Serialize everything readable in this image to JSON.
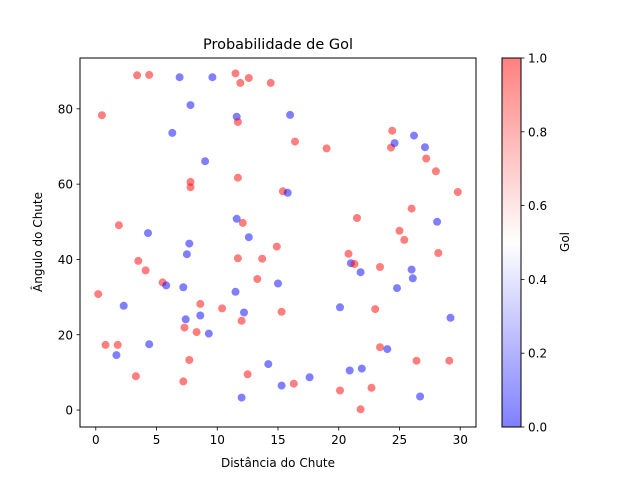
{
  "chart_data": {
    "type": "scatter",
    "title": "Probabilidade de Gol",
    "xlabel": "Distância do Chute",
    "ylabel": "Ângulo do Chute",
    "xlim": [
      -1.3,
      31.3
    ],
    "ylim": [
      -4.5,
      93.5
    ],
    "xticks": [
      0,
      5,
      10,
      15,
      20,
      25,
      30
    ],
    "yticks": [
      0,
      20,
      40,
      60,
      80
    ],
    "grid": false,
    "colorbar": {
      "label": "Gol",
      "range": [
        0.0,
        1.0
      ],
      "ticks": [
        "0.0",
        "0.2",
        "0.4",
        "0.6",
        "0.8",
        "1.0"
      ],
      "colormap": "bwr",
      "alpha": 0.5
    },
    "colors": {
      "goal": "#ff0000",
      "no_goal": "#0000ff"
    },
    "points": [
      {
        "x": 3.4,
        "y": 88.9,
        "gol": 1
      },
      {
        "x": 4.4,
        "y": 89.0,
        "gol": 1
      },
      {
        "x": 6.9,
        "y": 88.4,
        "gol": 0
      },
      {
        "x": 9.6,
        "y": 88.4,
        "gol": 0
      },
      {
        "x": 11.5,
        "y": 89.4,
        "gol": 1
      },
      {
        "x": 12.6,
        "y": 88.2,
        "gol": 1
      },
      {
        "x": 11.9,
        "y": 86.9,
        "gol": 1
      },
      {
        "x": 14.4,
        "y": 86.9,
        "gol": 1
      },
      {
        "x": 0.5,
        "y": 78.3,
        "gol": 1
      },
      {
        "x": 7.8,
        "y": 81.0,
        "gol": 0
      },
      {
        "x": 11.6,
        "y": 77.9,
        "gol": 0
      },
      {
        "x": 11.7,
        "y": 76.5,
        "gol": 1
      },
      {
        "x": 16.0,
        "y": 78.4,
        "gol": 0
      },
      {
        "x": 6.3,
        "y": 73.6,
        "gol": 0
      },
      {
        "x": 16.4,
        "y": 71.3,
        "gol": 1
      },
      {
        "x": 19.0,
        "y": 69.5,
        "gol": 1
      },
      {
        "x": 24.4,
        "y": 74.2,
        "gol": 1
      },
      {
        "x": 26.2,
        "y": 72.9,
        "gol": 0
      },
      {
        "x": 24.3,
        "y": 69.7,
        "gol": 1
      },
      {
        "x": 24.6,
        "y": 70.9,
        "gol": 0
      },
      {
        "x": 27.1,
        "y": 69.8,
        "gol": 0
      },
      {
        "x": 9.0,
        "y": 66.1,
        "gol": 0
      },
      {
        "x": 27.2,
        "y": 66.8,
        "gol": 1
      },
      {
        "x": 28.0,
        "y": 63.4,
        "gol": 1
      },
      {
        "x": 11.7,
        "y": 61.7,
        "gol": 1
      },
      {
        "x": 7.8,
        "y": 60.6,
        "gol": 1
      },
      {
        "x": 7.8,
        "y": 59.2,
        "gol": 1
      },
      {
        "x": 15.4,
        "y": 58.1,
        "gol": 1
      },
      {
        "x": 15.8,
        "y": 57.7,
        "gol": 0
      },
      {
        "x": 29.8,
        "y": 57.9,
        "gol": 1
      },
      {
        "x": 26.0,
        "y": 53.5,
        "gol": 1
      },
      {
        "x": 11.6,
        "y": 50.8,
        "gol": 0
      },
      {
        "x": 12.1,
        "y": 49.7,
        "gol": 1
      },
      {
        "x": 21.5,
        "y": 51.0,
        "gol": 1
      },
      {
        "x": 28.1,
        "y": 50.0,
        "gol": 0
      },
      {
        "x": 1.9,
        "y": 49.1,
        "gol": 1
      },
      {
        "x": 4.3,
        "y": 47.0,
        "gol": 0
      },
      {
        "x": 12.6,
        "y": 45.9,
        "gol": 0
      },
      {
        "x": 25.0,
        "y": 47.6,
        "gol": 1
      },
      {
        "x": 25.4,
        "y": 45.2,
        "gol": 1
      },
      {
        "x": 7.7,
        "y": 44.2,
        "gol": 0
      },
      {
        "x": 14.9,
        "y": 43.4,
        "gol": 1
      },
      {
        "x": 7.5,
        "y": 41.4,
        "gol": 0
      },
      {
        "x": 11.7,
        "y": 40.3,
        "gol": 1
      },
      {
        "x": 13.7,
        "y": 40.2,
        "gol": 1
      },
      {
        "x": 20.8,
        "y": 41.5,
        "gol": 1
      },
      {
        "x": 28.2,
        "y": 41.7,
        "gol": 1
      },
      {
        "x": 3.5,
        "y": 39.6,
        "gol": 1
      },
      {
        "x": 21.0,
        "y": 39.0,
        "gol": 0
      },
      {
        "x": 21.3,
        "y": 38.8,
        "gol": 1
      },
      {
        "x": 4.1,
        "y": 37.1,
        "gol": 1
      },
      {
        "x": 21.8,
        "y": 36.6,
        "gol": 0
      },
      {
        "x": 23.4,
        "y": 38.0,
        "gol": 1
      },
      {
        "x": 26.0,
        "y": 37.3,
        "gol": 0
      },
      {
        "x": 26.1,
        "y": 35.0,
        "gol": 0
      },
      {
        "x": 13.3,
        "y": 34.8,
        "gol": 1
      },
      {
        "x": 5.5,
        "y": 33.9,
        "gol": 1
      },
      {
        "x": 5.8,
        "y": 33.1,
        "gol": 0
      },
      {
        "x": 7.2,
        "y": 32.6,
        "gol": 0
      },
      {
        "x": 15.0,
        "y": 33.6,
        "gol": 0
      },
      {
        "x": 24.8,
        "y": 32.4,
        "gol": 0
      },
      {
        "x": 0.2,
        "y": 30.8,
        "gol": 1
      },
      {
        "x": 11.5,
        "y": 31.4,
        "gol": 0
      },
      {
        "x": 2.3,
        "y": 27.7,
        "gol": 0
      },
      {
        "x": 8.6,
        "y": 28.2,
        "gol": 1
      },
      {
        "x": 10.4,
        "y": 27.0,
        "gol": 1
      },
      {
        "x": 20.1,
        "y": 27.3,
        "gol": 0
      },
      {
        "x": 23.0,
        "y": 26.8,
        "gol": 1
      },
      {
        "x": 12.2,
        "y": 25.9,
        "gol": 0
      },
      {
        "x": 15.3,
        "y": 26.1,
        "gol": 1
      },
      {
        "x": 8.6,
        "y": 25.1,
        "gol": 0
      },
      {
        "x": 7.4,
        "y": 24.1,
        "gol": 0
      },
      {
        "x": 12.0,
        "y": 23.7,
        "gol": 1
      },
      {
        "x": 29.2,
        "y": 24.5,
        "gol": 0
      },
      {
        "x": 7.3,
        "y": 21.9,
        "gol": 1
      },
      {
        "x": 8.3,
        "y": 20.7,
        "gol": 1
      },
      {
        "x": 9.3,
        "y": 20.3,
        "gol": 0
      },
      {
        "x": 0.8,
        "y": 17.3,
        "gol": 1
      },
      {
        "x": 1.8,
        "y": 17.3,
        "gol": 1
      },
      {
        "x": 4.4,
        "y": 17.5,
        "gol": 0
      },
      {
        "x": 1.7,
        "y": 14.6,
        "gol": 0
      },
      {
        "x": 7.7,
        "y": 13.3,
        "gol": 1
      },
      {
        "x": 14.2,
        "y": 12.2,
        "gol": 0
      },
      {
        "x": 23.4,
        "y": 16.7,
        "gol": 1
      },
      {
        "x": 24.0,
        "y": 16.2,
        "gol": 0
      },
      {
        "x": 26.4,
        "y": 13.1,
        "gol": 1
      },
      {
        "x": 29.1,
        "y": 13.1,
        "gol": 1
      },
      {
        "x": 20.9,
        "y": 10.5,
        "gol": 0
      },
      {
        "x": 21.9,
        "y": 11.0,
        "gol": 0
      },
      {
        "x": 3.3,
        "y": 9.0,
        "gol": 1
      },
      {
        "x": 12.5,
        "y": 9.5,
        "gol": 1
      },
      {
        "x": 17.6,
        "y": 8.7,
        "gol": 0
      },
      {
        "x": 7.2,
        "y": 7.6,
        "gol": 1
      },
      {
        "x": 15.3,
        "y": 6.5,
        "gol": 0
      },
      {
        "x": 16.3,
        "y": 7.0,
        "gol": 1
      },
      {
        "x": 20.1,
        "y": 5.2,
        "gol": 1
      },
      {
        "x": 22.7,
        "y": 5.9,
        "gol": 1
      },
      {
        "x": 12.0,
        "y": 3.3,
        "gol": 0
      },
      {
        "x": 26.7,
        "y": 3.6,
        "gol": 0
      },
      {
        "x": 21.8,
        "y": 0.2,
        "gol": 1
      }
    ]
  }
}
